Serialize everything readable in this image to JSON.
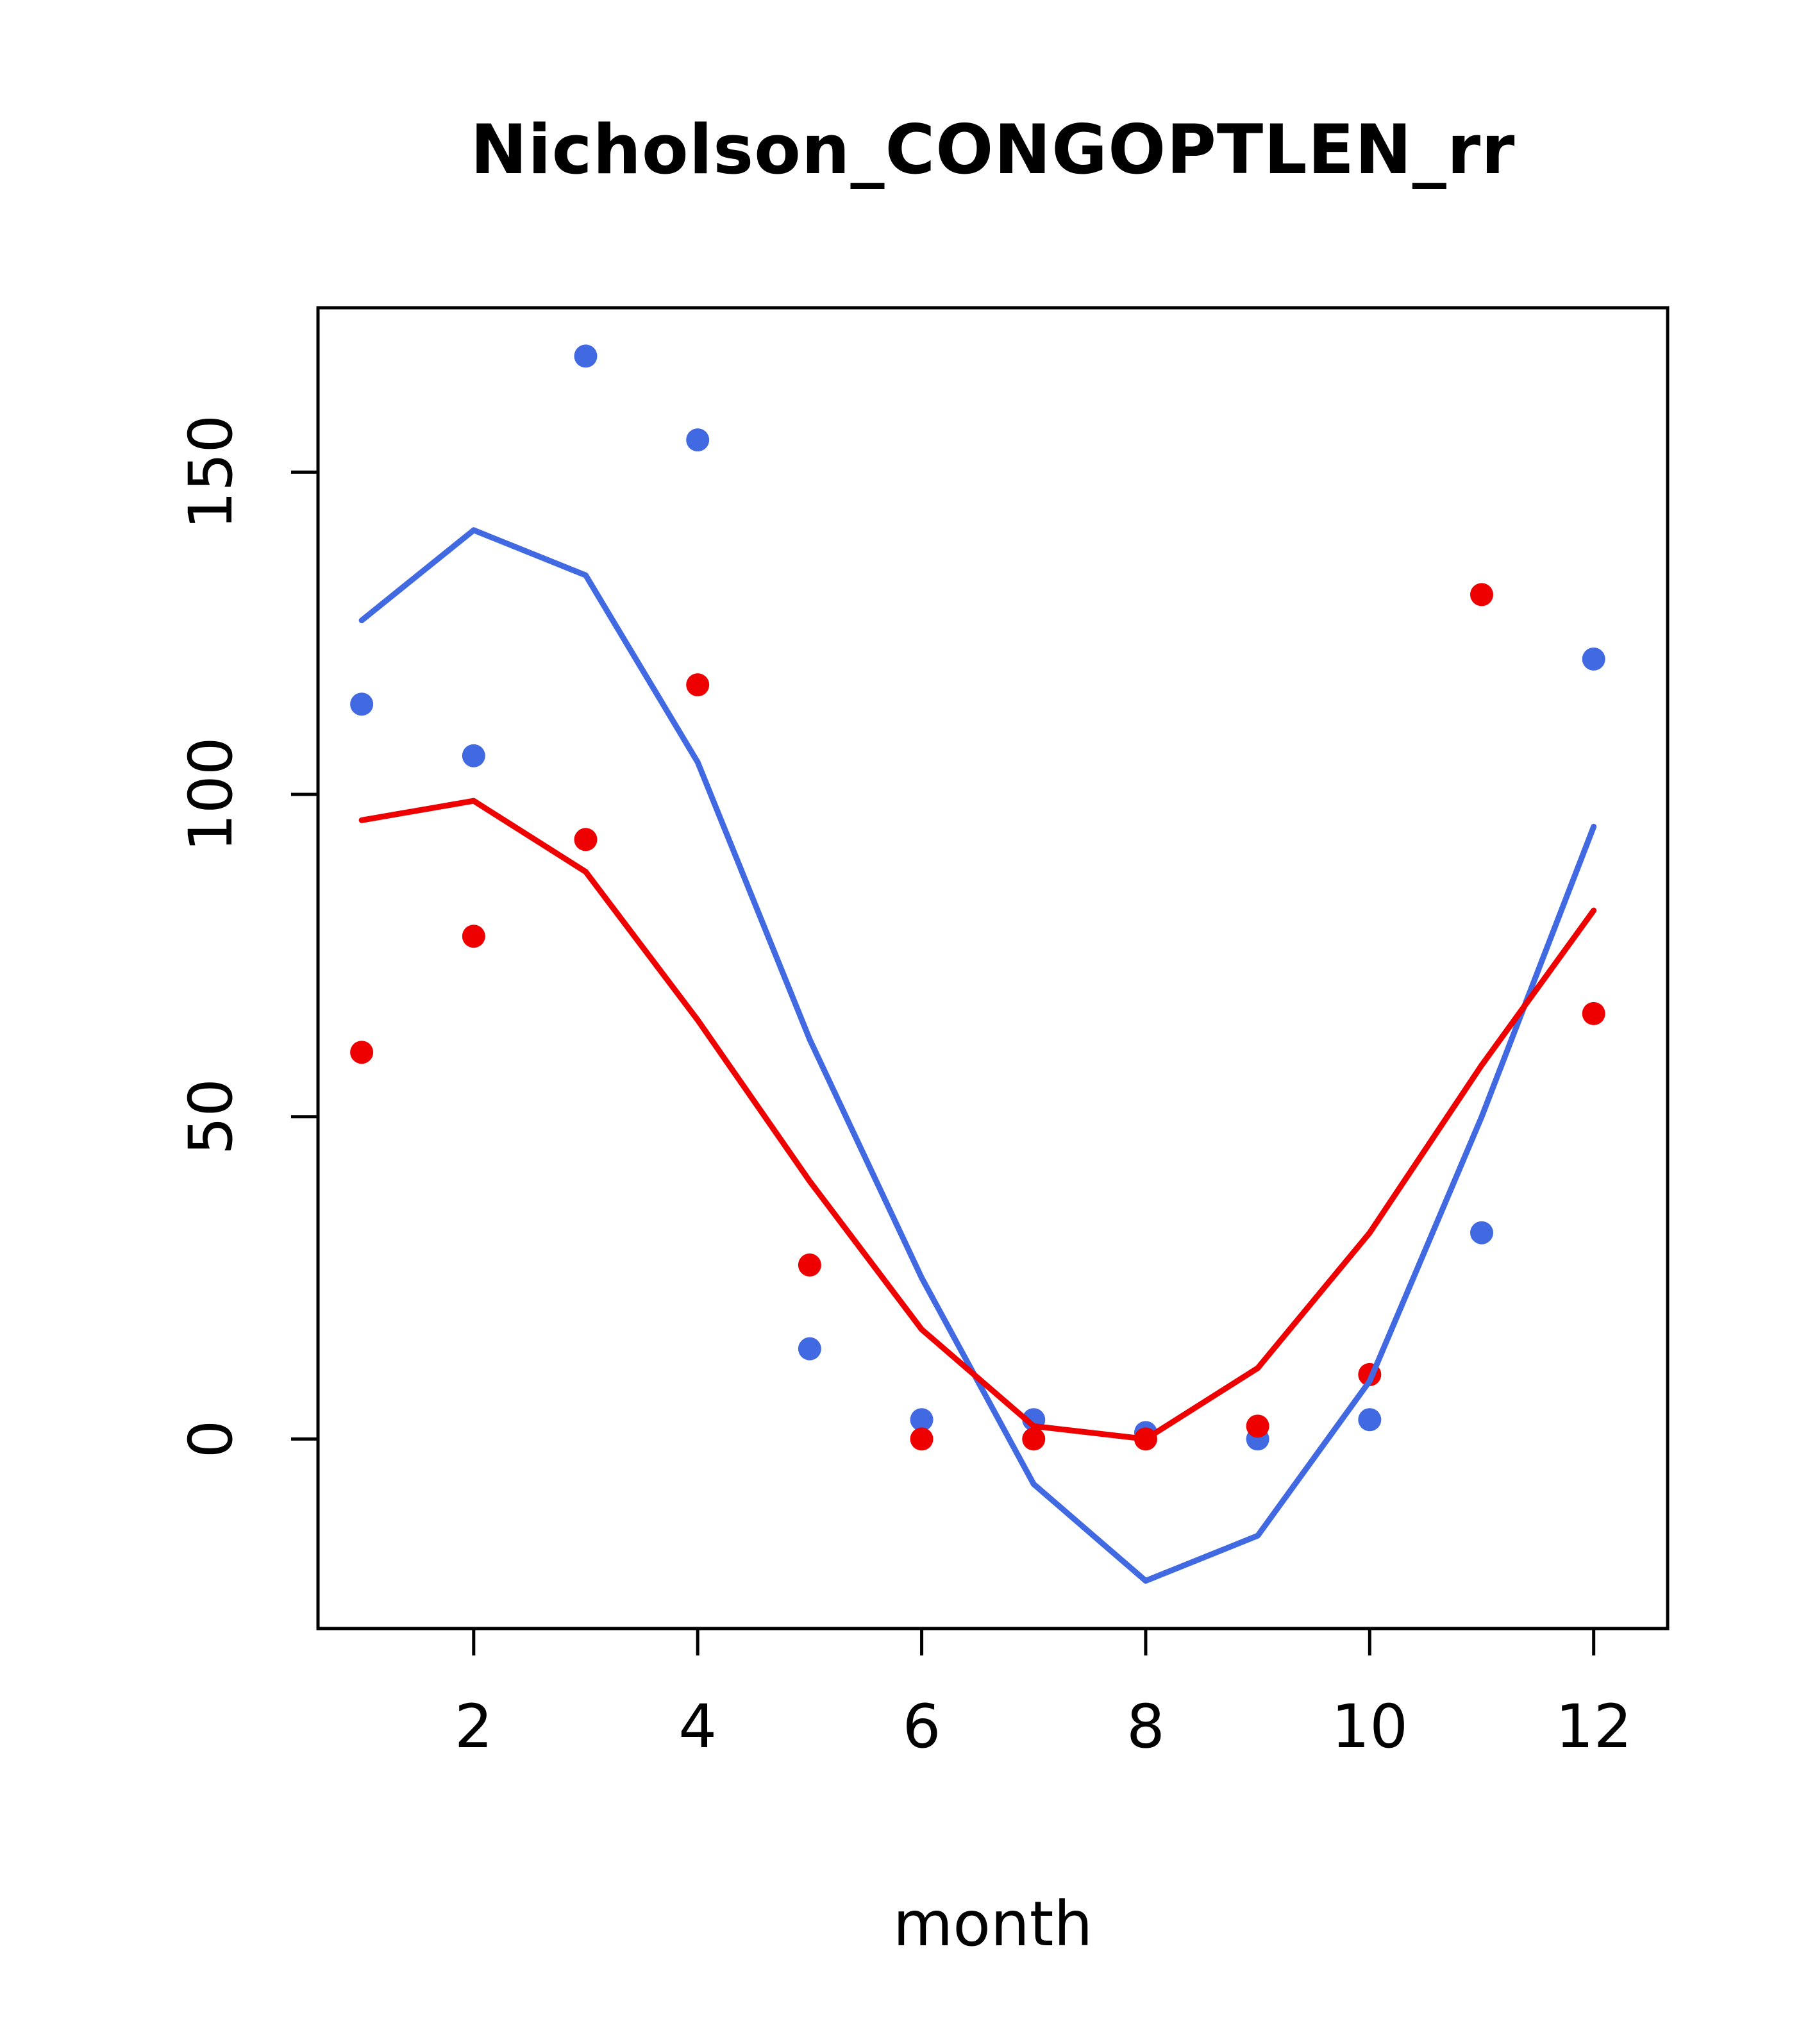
{
  "chart_data": {
    "type": "scatter",
    "title": "Nicholson_CONGOPTLEN_rr",
    "xlabel": "month",
    "ylabel": "",
    "xlim": [
      0.61,
      12.66
    ],
    "ylim": [
      -29.4,
      175.5
    ],
    "xticks": [
      2,
      4,
      6,
      8,
      10,
      12
    ],
    "yticks": [
      0,
      50,
      100,
      150
    ],
    "x": [
      1,
      2,
      3,
      4,
      5,
      6,
      7,
      8,
      9,
      10,
      11,
      12
    ],
    "grid": false,
    "legend": "none",
    "colors": {
      "blue": "#4169E1",
      "red": "#EE0000",
      "axis": "#000000"
    },
    "series": [
      {
        "name": "blue points",
        "kind": "points",
        "color": "#4169E1",
        "values": [
          114,
          106,
          168,
          155,
          14,
          3,
          3,
          1,
          0,
          3,
          32,
          121
        ]
      },
      {
        "name": "red points",
        "kind": "points",
        "color": "#EE0000",
        "values": [
          60,
          78,
          93,
          117,
          27,
          0,
          0,
          0,
          2,
          10,
          131,
          66
        ]
      },
      {
        "name": "blue line",
        "kind": "line",
        "color": "#4169E1",
        "values": [
          127,
          141,
          134,
          105,
          62,
          25,
          -7,
          -22,
          -15,
          9,
          50,
          95
        ]
      },
      {
        "name": "red line",
        "kind": "line",
        "color": "#EE0000",
        "values": [
          96,
          99,
          88,
          65,
          40,
          17,
          2,
          0,
          11,
          32,
          58,
          82
        ]
      }
    ]
  }
}
